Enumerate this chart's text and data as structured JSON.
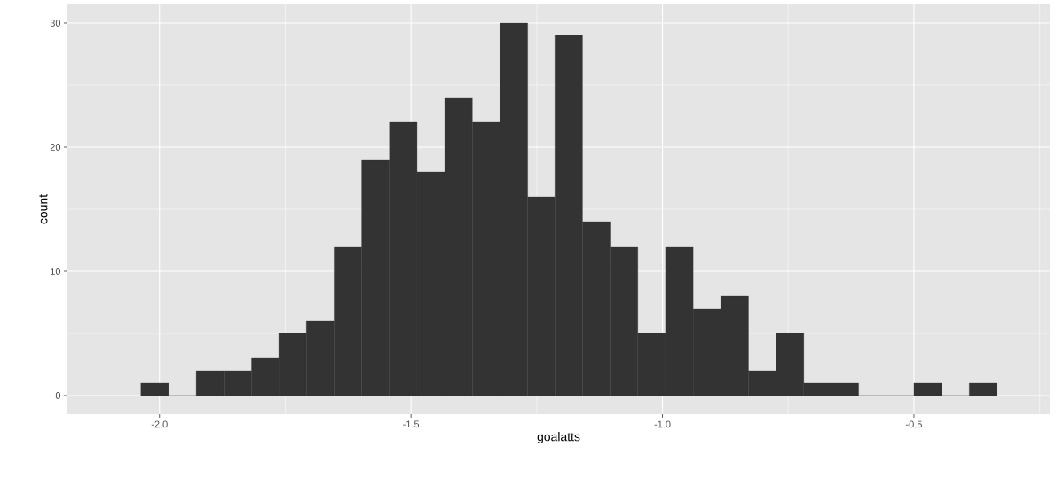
{
  "chart_data": {
    "type": "histogram",
    "xlabel": "goalatts",
    "ylabel": "count",
    "bins": [
      -2.037,
      -1.982,
      -1.927,
      -1.872,
      -1.817,
      -1.763,
      -1.708,
      -1.653,
      -1.598,
      -1.543,
      -1.488,
      -1.433,
      -1.378,
      -1.323,
      -1.268,
      -1.214,
      -1.159,
      -1.104,
      -1.049,
      -0.994,
      -0.939,
      -0.884,
      -0.829,
      -0.774,
      -0.719,
      -0.665,
      -0.61,
      -0.555,
      -0.5,
      -0.445,
      -0.39,
      -0.335
    ],
    "values": [
      1,
      0,
      2,
      2,
      3,
      5,
      6,
      12,
      19,
      22,
      18,
      24,
      22,
      30,
      16,
      29,
      14,
      12,
      5,
      12,
      7,
      8,
      2,
      5,
      1,
      1,
      0,
      0,
      1,
      0,
      1
    ],
    "color": "#333333",
    "xlim": [
      -2.183,
      -0.23
    ],
    "ylim": [
      -1.5,
      31.5
    ],
    "xticks": [
      {
        "value": -2.0,
        "label": "-2.0"
      },
      {
        "value": -1.5,
        "label": "-1.5"
      },
      {
        "value": -1.0,
        "label": "-1.0"
      },
      {
        "value": -0.5,
        "label": "-0.5"
      }
    ],
    "yticks": [
      0,
      10,
      20,
      30
    ],
    "grid": true
  }
}
